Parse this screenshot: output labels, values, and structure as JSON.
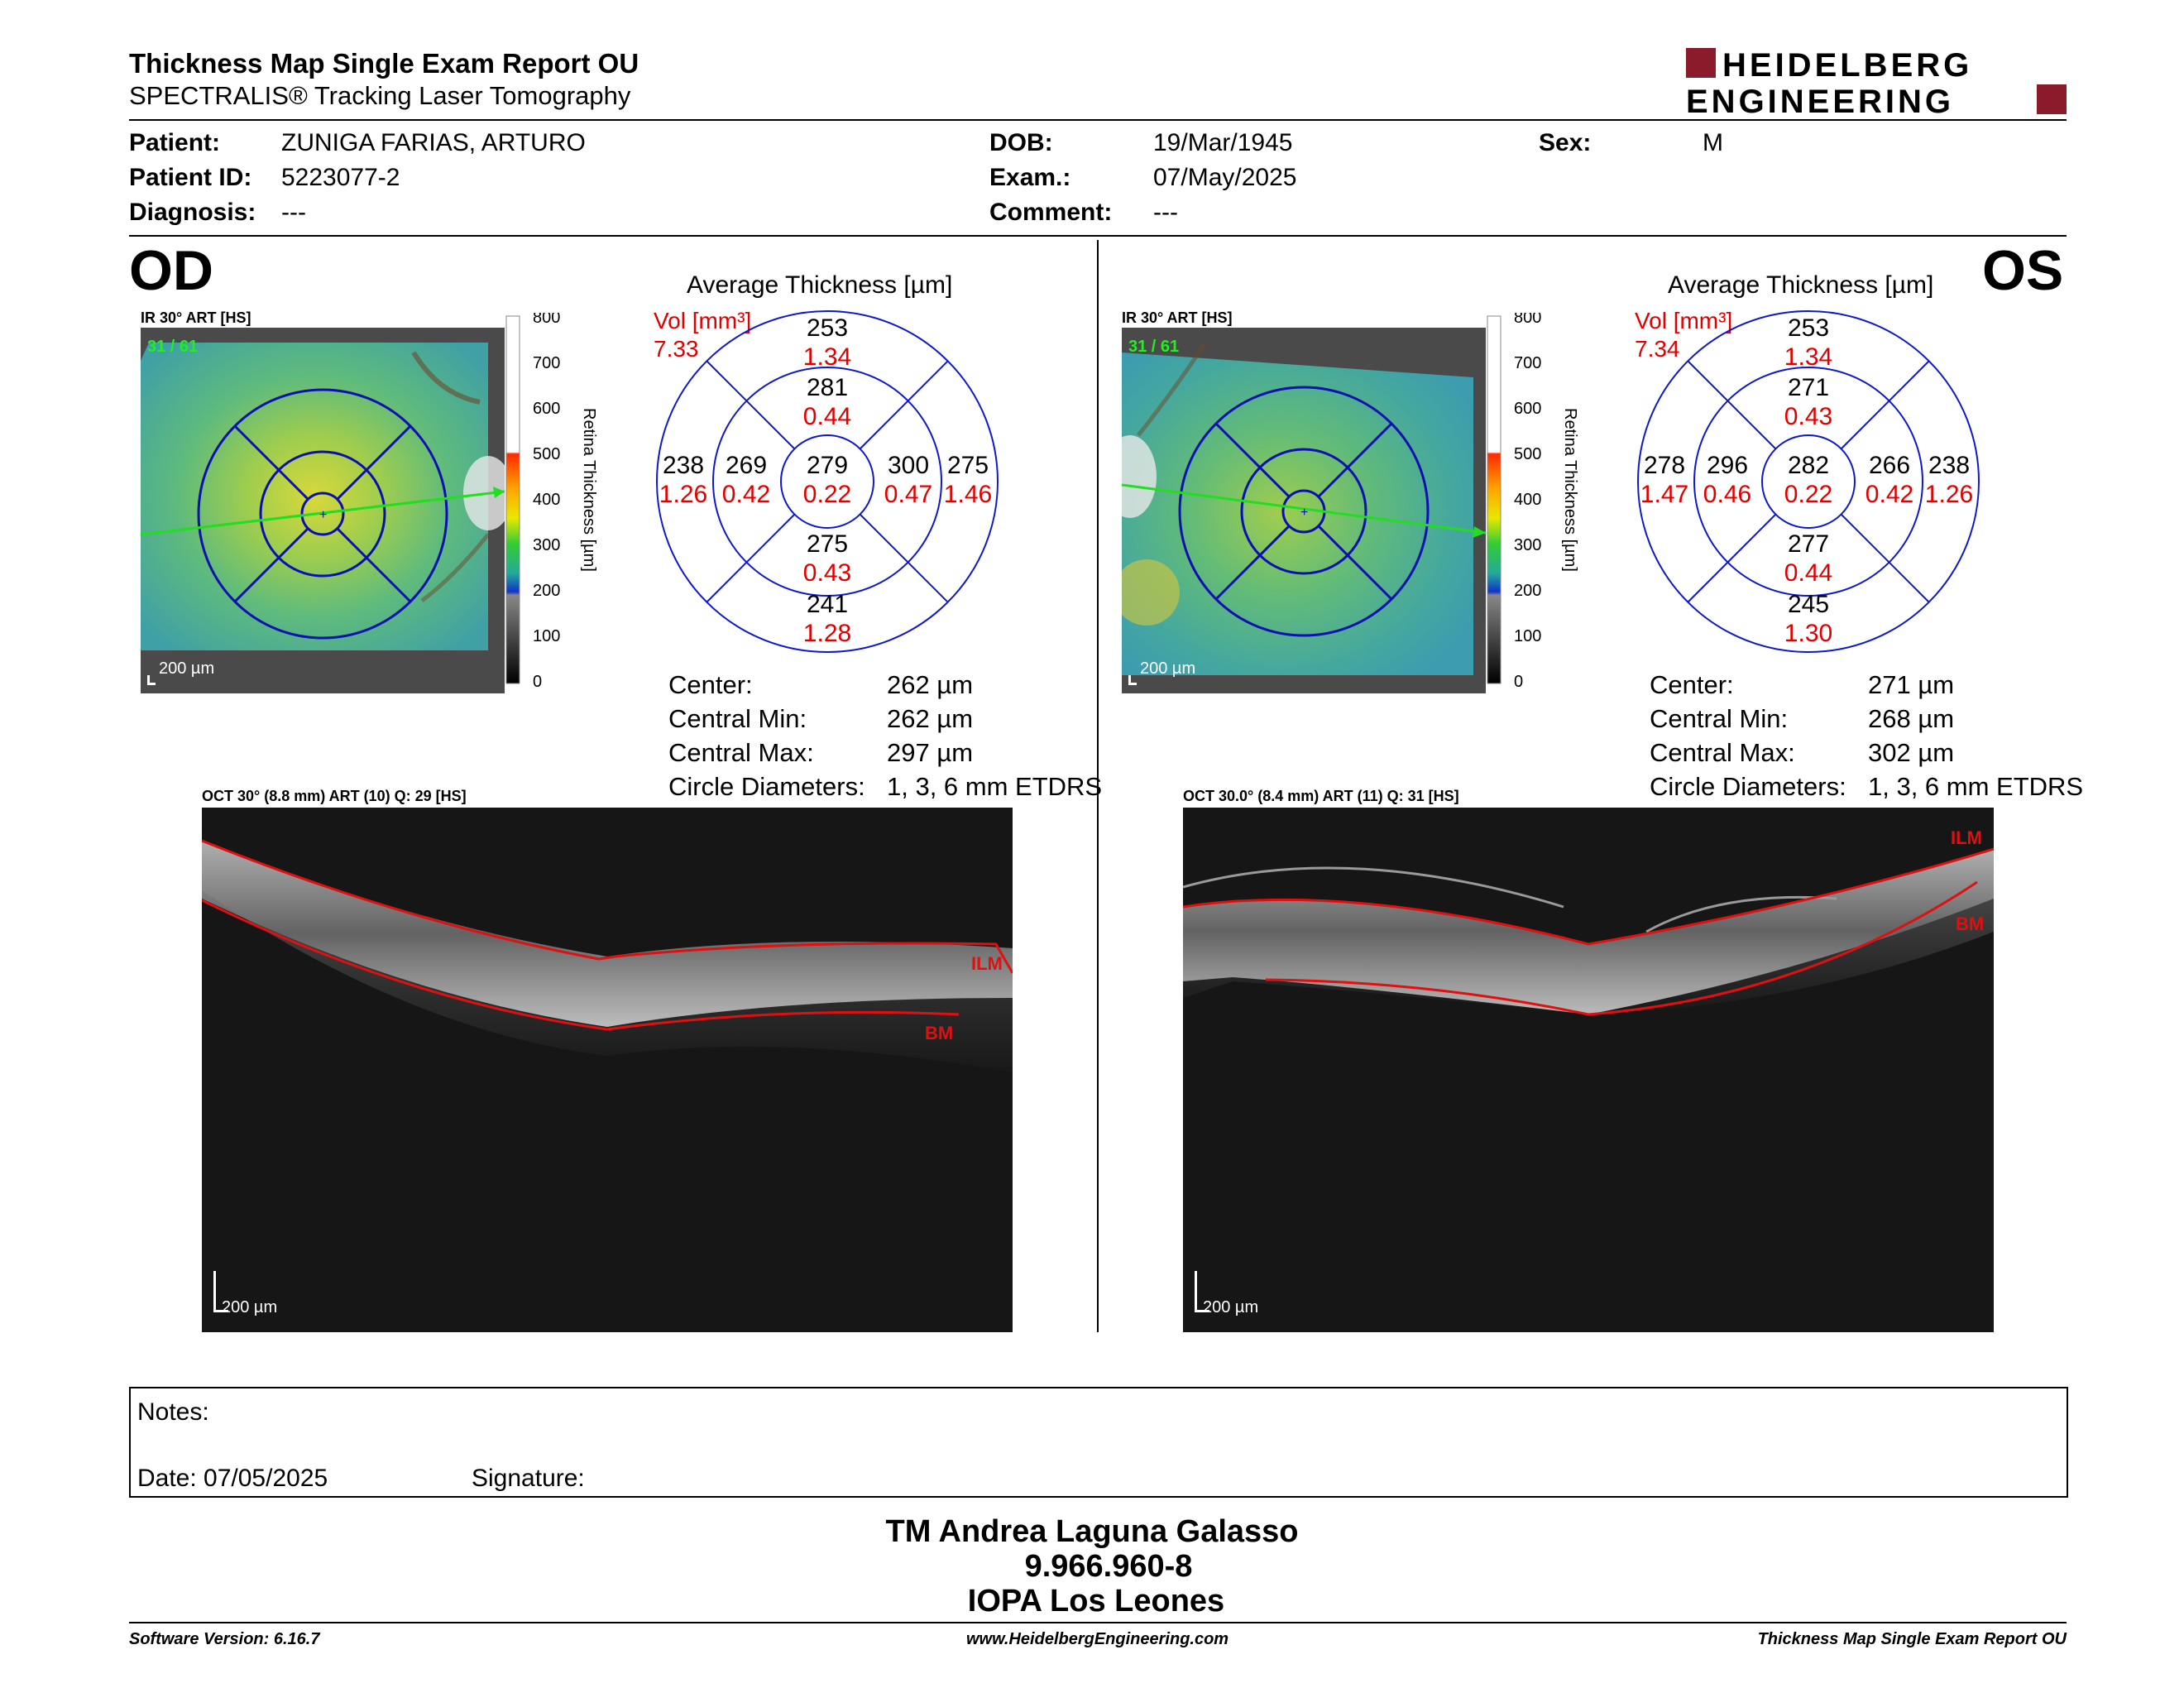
{
  "header": {
    "title": "Thickness Map Single Exam Report OU",
    "subtitle": "SPECTRALIS® Tracking Laser Tomography",
    "logo_line1": "HEIDELBERG",
    "logo_line2": "ENGINEERING",
    "brand_color": "#8b1a2b"
  },
  "patient": {
    "patient_label": "Patient:",
    "patient_value": "ZUNIGA FARIAS, ARTURO",
    "id_label": "Patient ID:",
    "id_value": "5223077-2",
    "diagnosis_label": "Diagnosis:",
    "diagnosis_value": "---",
    "dob_label": "DOB:",
    "dob_value": "19/Mar/1945",
    "exam_label": "Exam.:",
    "exam_value": "07/May/2025",
    "comment_label": "Comment:",
    "comment_value": "---",
    "sex_label": "Sex:",
    "sex_value": "M"
  },
  "od": {
    "eye": "OD",
    "ir_label": "IR 30° ART [HS]",
    "ir_counter": "31 / 61",
    "scale_bar": "200 µm",
    "colorbar_ticks": [
      "800",
      "700",
      "600",
      "500",
      "400",
      "300",
      "200",
      "100",
      "0"
    ],
    "colorbar_title": "Retina Thickness [µm]",
    "avg_title": "Average Thickness [µm]",
    "vol_label": "Vol [mm³]",
    "vol_value": "7.33",
    "etdrs": {
      "center": {
        "t": "279",
        "v": "0.22"
      },
      "inner_sup": {
        "t": "281",
        "v": "0.44"
      },
      "inner_inf": {
        "t": "275",
        "v": "0.43"
      },
      "inner_left": {
        "t": "269",
        "v": "0.42"
      },
      "inner_right": {
        "t": "300",
        "v": "0.47"
      },
      "outer_sup": {
        "t": "253",
        "v": "1.34"
      },
      "outer_inf": {
        "t": "241",
        "v": "1.28"
      },
      "outer_left": {
        "t": "238",
        "v": "1.26"
      },
      "outer_right": {
        "t": "275",
        "v": "1.46"
      }
    },
    "stats": [
      {
        "label": "Center:",
        "value": "262 µm"
      },
      {
        "label": "Central Min:",
        "value": "262 µm"
      },
      {
        "label": "Central Max:",
        "value": "297 µm"
      },
      {
        "label": "Circle Diameters:",
        "value": "1, 3, 6 mm ETDRS"
      }
    ],
    "oct_label": "OCT 30° (8.8 mm) ART (10) Q: 29 [HS]",
    "ilm": "ILM",
    "bm": "BM",
    "oct_scale": "200 µm"
  },
  "os": {
    "eye": "OS",
    "ir_label": "IR 30° ART [HS]",
    "ir_counter": "31 / 61",
    "scale_bar": "200 µm",
    "colorbar_ticks": [
      "800",
      "700",
      "600",
      "500",
      "400",
      "300",
      "200",
      "100",
      "0"
    ],
    "colorbar_title": "Retina Thickness [µm]",
    "avg_title": "Average Thickness [µm]",
    "vol_label": "Vol [mm³]",
    "vol_value": "7.34",
    "etdrs": {
      "center": {
        "t": "282",
        "v": "0.22"
      },
      "inner_sup": {
        "t": "271",
        "v": "0.43"
      },
      "inner_inf": {
        "t": "277",
        "v": "0.44"
      },
      "inner_left": {
        "t": "296",
        "v": "0.46"
      },
      "inner_right": {
        "t": "266",
        "v": "0.42"
      },
      "outer_sup": {
        "t": "253",
        "v": "1.34"
      },
      "outer_inf": {
        "t": "245",
        "v": "1.30"
      },
      "outer_left": {
        "t": "278",
        "v": "1.47"
      },
      "outer_right": {
        "t": "238",
        "v": "1.26"
      }
    },
    "stats": [
      {
        "label": "Center:",
        "value": "271 µm"
      },
      {
        "label": "Central Min:",
        "value": "268 µm"
      },
      {
        "label": "Central Max:",
        "value": "302 µm"
      },
      {
        "label": "Circle Diameters:",
        "value": "1, 3, 6 mm ETDRS"
      }
    ],
    "oct_label": "OCT 30.0° (8.4 mm) ART (11) Q: 31 [HS]",
    "ilm": "ILM",
    "bm": "BM",
    "oct_scale": "200 µm"
  },
  "notes": {
    "notes_label": "Notes:",
    "date_label": "Date: 07/05/2025",
    "signature_label": "Signature:"
  },
  "signer": {
    "name": "TM Andrea Laguna Galasso",
    "id": "9.966.960-8",
    "org": "IOPA Los Leones"
  },
  "footer": {
    "version": "Software Version: 6.16.7",
    "website": "www.HeidelbergEngineering.com",
    "report": "Thickness Map Single Exam Report OU"
  }
}
